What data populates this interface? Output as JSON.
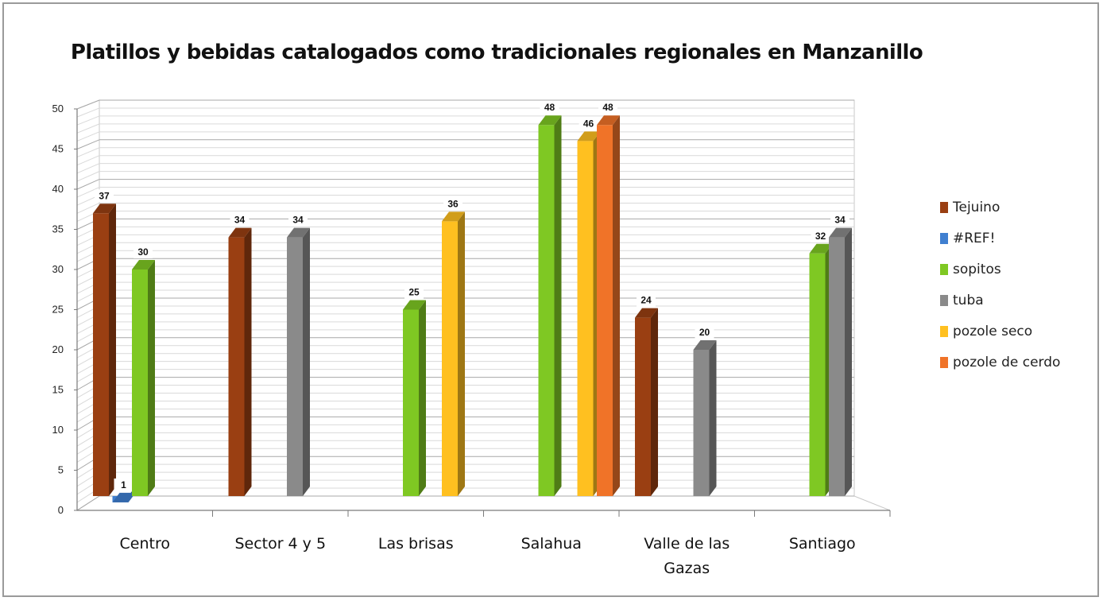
{
  "chart_data": {
    "type": "bar",
    "title": "Platillos  y bebidas catalogados como tradicionales regionales  en Manzanillo",
    "xlabel": "",
    "ylabel": "",
    "ylim": [
      0,
      50
    ],
    "yticks": [
      0,
      5,
      10,
      15,
      20,
      25,
      30,
      35,
      40,
      45,
      50
    ],
    "grid": true,
    "legend_position": "right",
    "categories": [
      "Centro",
      "Sector 4 y 5",
      "Las brisas",
      "Salahua",
      "Valle de las Gazas",
      "Santiago"
    ],
    "series": [
      {
        "name": "Tejuino",
        "color": "#9a3f12",
        "values": [
          37,
          34,
          null,
          null,
          24,
          null
        ]
      },
      {
        "name": "#REF!",
        "color": "#3f7fd0",
        "values": [
          1,
          null,
          null,
          null,
          null,
          null
        ]
      },
      {
        "name": "sopitos",
        "color": "#7fc823",
        "values": [
          30,
          null,
          25,
          48,
          null,
          32
        ]
      },
      {
        "name": "tuba",
        "color": "#8a8a8a",
        "values": [
          null,
          34,
          null,
          null,
          20,
          34
        ]
      },
      {
        "name": "pozole seco",
        "color": "#ffc020",
        "values": [
          null,
          null,
          36,
          46,
          null,
          null
        ]
      },
      {
        "name": "pozole de cerdo",
        "color": "#f07328",
        "values": [
          null,
          null,
          null,
          48,
          null,
          null
        ]
      }
    ],
    "data_labels": true
  }
}
